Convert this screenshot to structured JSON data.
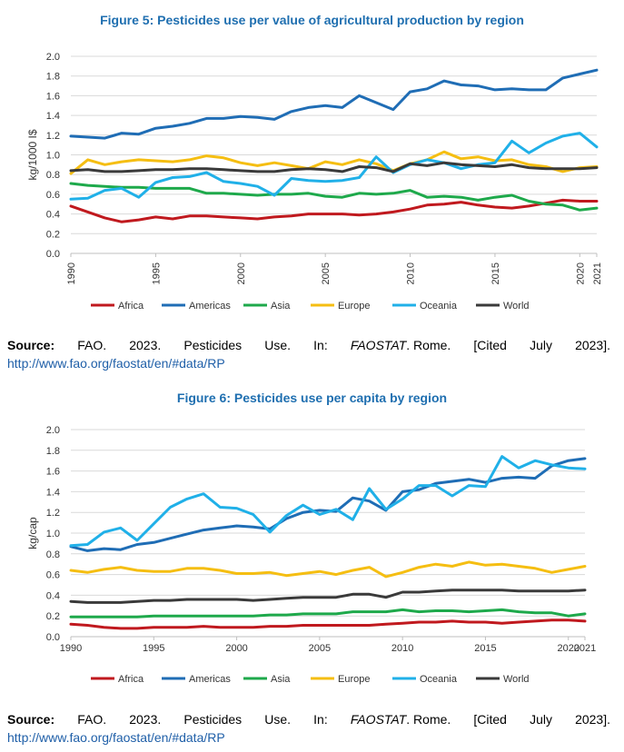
{
  "colors": {
    "Africa": "#c0191e",
    "Americas": "#1f6db5",
    "Asia": "#1ea94b",
    "Europe": "#f5be12",
    "Oceania": "#20b0e8",
    "World": "#3a3a3a",
    "title": "#1f6fb0"
  },
  "chart_data": [
    {
      "type": "line",
      "title": "Figure 5: Pesticides use per value of agricultural production by region",
      "xlabel": "",
      "ylabel": "kg/1000 I$",
      "xlim": [
        1990,
        2021
      ],
      "ylim": [
        0,
        2.0
      ],
      "yticks": [
        "0.0",
        "0.2",
        "0.4",
        "0.6",
        "0.8",
        "1.0",
        "1.2",
        "1.4",
        "1.6",
        "1.8",
        "2.0"
      ],
      "xticks": [
        "1990",
        "1995",
        "2000",
        "2005",
        "2010",
        "2015",
        "2020",
        "2021"
      ],
      "grid": true,
      "legend_position": "bottom",
      "x": [
        1990,
        1991,
        1992,
        1993,
        1994,
        1995,
        1996,
        1997,
        1998,
        1999,
        2000,
        2001,
        2002,
        2003,
        2004,
        2005,
        2006,
        2007,
        2008,
        2009,
        2010,
        2011,
        2012,
        2013,
        2014,
        2015,
        2016,
        2017,
        2018,
        2019,
        2020,
        2021
      ],
      "series": [
        {
          "name": "Africa",
          "values": [
            0.48,
            0.42,
            0.36,
            0.32,
            0.34,
            0.37,
            0.35,
            0.38,
            0.38,
            0.37,
            0.36,
            0.35,
            0.37,
            0.38,
            0.4,
            0.4,
            0.4,
            0.39,
            0.4,
            0.42,
            0.45,
            0.49,
            0.5,
            0.52,
            0.49,
            0.47,
            0.46,
            0.48,
            0.51,
            0.54,
            0.53,
            0.53
          ]
        },
        {
          "name": "Americas",
          "values": [
            1.19,
            1.18,
            1.17,
            1.22,
            1.21,
            1.27,
            1.29,
            1.32,
            1.37,
            1.37,
            1.39,
            1.38,
            1.36,
            1.44,
            1.48,
            1.5,
            1.48,
            1.6,
            1.53,
            1.46,
            1.64,
            1.67,
            1.75,
            1.71,
            1.7,
            1.66,
            1.67,
            1.66,
            1.66,
            1.78,
            1.82,
            1.86
          ]
        },
        {
          "name": "Asia",
          "values": [
            0.71,
            0.69,
            0.68,
            0.67,
            0.67,
            0.66,
            0.66,
            0.66,
            0.61,
            0.61,
            0.6,
            0.59,
            0.6,
            0.6,
            0.61,
            0.58,
            0.57,
            0.61,
            0.6,
            0.61,
            0.64,
            0.57,
            0.58,
            0.57,
            0.54,
            0.57,
            0.59,
            0.53,
            0.5,
            0.49,
            0.44,
            0.46
          ]
        },
        {
          "name": "Europe",
          "values": [
            0.81,
            0.95,
            0.9,
            0.93,
            0.95,
            0.94,
            0.93,
            0.95,
            0.99,
            0.97,
            0.92,
            0.89,
            0.92,
            0.89,
            0.86,
            0.93,
            0.9,
            0.95,
            0.91,
            0.84,
            0.91,
            0.95,
            1.03,
            0.96,
            0.98,
            0.94,
            0.95,
            0.9,
            0.88,
            0.83,
            0.87,
            0.88
          ]
        },
        {
          "name": "Oceania",
          "values": [
            0.55,
            0.56,
            0.64,
            0.66,
            0.57,
            0.72,
            0.77,
            0.78,
            0.82,
            0.73,
            0.71,
            0.68,
            0.59,
            0.76,
            0.74,
            0.73,
            0.74,
            0.77,
            0.98,
            0.82,
            0.9,
            0.95,
            0.92,
            0.86,
            0.9,
            0.92,
            1.14,
            1.02,
            1.12,
            1.19,
            1.22,
            1.08
          ]
        },
        {
          "name": "World",
          "values": [
            0.84,
            0.85,
            0.83,
            0.83,
            0.84,
            0.85,
            0.85,
            0.86,
            0.86,
            0.85,
            0.84,
            0.83,
            0.83,
            0.85,
            0.86,
            0.85,
            0.83,
            0.88,
            0.87,
            0.83,
            0.91,
            0.89,
            0.92,
            0.9,
            0.89,
            0.88,
            0.9,
            0.87,
            0.86,
            0.86,
            0.86,
            0.87
          ]
        }
      ]
    },
    {
      "type": "line",
      "title": "Figure 6: Pesticides use per capita by region",
      "xlabel": "",
      "ylabel": "kg/cap",
      "xlim": [
        1990,
        2021
      ],
      "ylim": [
        0,
        2.0
      ],
      "yticks": [
        "0.0",
        "0.2",
        "0.4",
        "0.6",
        "0.8",
        "1.0",
        "1.2",
        "1.4",
        "1.6",
        "1.8",
        "2.0"
      ],
      "xticks": [
        "1990",
        "1995",
        "2000",
        "2005",
        "2010",
        "2015",
        "2020",
        "2021"
      ],
      "grid": true,
      "legend_position": "bottom",
      "x": [
        1990,
        1991,
        1992,
        1993,
        1994,
        1995,
        1996,
        1997,
        1998,
        1999,
        2000,
        2001,
        2002,
        2003,
        2004,
        2005,
        2006,
        2007,
        2008,
        2009,
        2010,
        2011,
        2012,
        2013,
        2014,
        2015,
        2016,
        2017,
        2018,
        2019,
        2020,
        2021
      ],
      "series": [
        {
          "name": "Africa",
          "values": [
            0.12,
            0.11,
            0.09,
            0.08,
            0.08,
            0.09,
            0.09,
            0.09,
            0.1,
            0.09,
            0.09,
            0.09,
            0.1,
            0.1,
            0.11,
            0.11,
            0.11,
            0.11,
            0.11,
            0.12,
            0.13,
            0.14,
            0.14,
            0.15,
            0.14,
            0.14,
            0.13,
            0.14,
            0.15,
            0.16,
            0.16,
            0.15
          ]
        },
        {
          "name": "Americas",
          "values": [
            0.87,
            0.83,
            0.85,
            0.84,
            0.89,
            0.91,
            0.95,
            0.99,
            1.03,
            1.05,
            1.07,
            1.06,
            1.04,
            1.14,
            1.2,
            1.22,
            1.21,
            1.34,
            1.31,
            1.22,
            1.4,
            1.42,
            1.48,
            1.5,
            1.52,
            1.49,
            1.53,
            1.54,
            1.53,
            1.65,
            1.7,
            1.72
          ]
        },
        {
          "name": "Asia",
          "values": [
            0.19,
            0.19,
            0.19,
            0.19,
            0.19,
            0.2,
            0.2,
            0.2,
            0.2,
            0.2,
            0.2,
            0.2,
            0.21,
            0.21,
            0.22,
            0.22,
            0.22,
            0.24,
            0.24,
            0.24,
            0.26,
            0.24,
            0.25,
            0.25,
            0.24,
            0.25,
            0.26,
            0.24,
            0.23,
            0.23,
            0.2,
            0.22
          ]
        },
        {
          "name": "Europe",
          "values": [
            0.64,
            0.62,
            0.65,
            0.67,
            0.64,
            0.63,
            0.63,
            0.66,
            0.66,
            0.64,
            0.61,
            0.61,
            0.62,
            0.59,
            0.61,
            0.63,
            0.6,
            0.64,
            0.67,
            0.58,
            0.62,
            0.67,
            0.7,
            0.68,
            0.72,
            0.69,
            0.7,
            0.68,
            0.66,
            0.62,
            0.65,
            0.68
          ]
        },
        {
          "name": "Oceania",
          "values": [
            0.88,
            0.89,
            1.01,
            1.05,
            0.93,
            1.09,
            1.25,
            1.33,
            1.38,
            1.25,
            1.24,
            1.18,
            1.01,
            1.17,
            1.27,
            1.18,
            1.23,
            1.13,
            1.43,
            1.23,
            1.33,
            1.46,
            1.46,
            1.36,
            1.46,
            1.45,
            1.74,
            1.63,
            1.7,
            1.66,
            1.63,
            1.62
          ]
        },
        {
          "name": "World",
          "values": [
            0.34,
            0.33,
            0.33,
            0.33,
            0.34,
            0.35,
            0.35,
            0.36,
            0.36,
            0.36,
            0.36,
            0.35,
            0.36,
            0.37,
            0.38,
            0.38,
            0.38,
            0.41,
            0.41,
            0.38,
            0.43,
            0.43,
            0.44,
            0.45,
            0.45,
            0.45,
            0.45,
            0.44,
            0.44,
            0.44,
            0.44,
            0.45
          ]
        }
      ]
    }
  ],
  "sources": [
    {
      "label": "Source:",
      "words": [
        "FAO.",
        "2023.",
        "Pesticides",
        "Use.",
        "In:"
      ],
      "italic": "FAOSTAT",
      "after": [
        ". Rome.",
        "[Cited",
        "July",
        "2023]."
      ],
      "url": "http://www.fao.org/faostat/en/#data/RP"
    },
    {
      "label": "Source:",
      "words": [
        "FAO.",
        "2023.",
        "Pesticides",
        "Use.",
        "In:"
      ],
      "italic": "FAOSTAT",
      "after": [
        ". Rome.",
        "[Cited",
        "July",
        "2023]."
      ],
      "url": "http://www.fao.org/faostat/en/#data/RP"
    }
  ]
}
